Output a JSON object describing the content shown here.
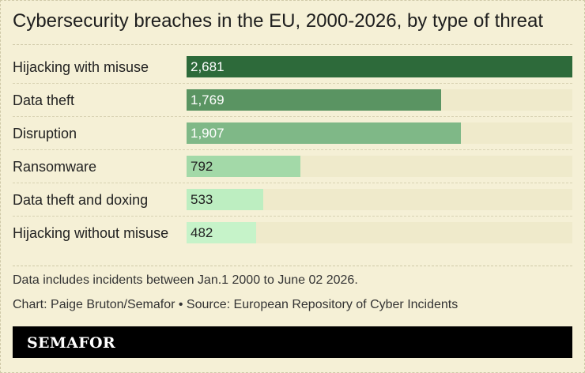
{
  "chart_data": {
    "type": "bar",
    "orientation": "horizontal",
    "title": "Cybersecurity breaches in the EU, 2000-2026, by type of threat",
    "categories": [
      "Hijacking with misuse",
      "Data theft",
      "Disruption",
      "Ransomware",
      "Data theft and doxing",
      "Hijacking without misuse"
    ],
    "values": [
      2681,
      1769,
      1907,
      792,
      533,
      482
    ],
    "value_labels": [
      "2,681",
      "1,769",
      "1,907",
      "792",
      "533",
      "482"
    ],
    "xlim": [
      0,
      2681
    ],
    "bar_colors": [
      "#2d6a3a",
      "#5a9462",
      "#7fb887",
      "#a3d9a8",
      "#bdeec1",
      "#c6f3c9"
    ],
    "value_text_colors": [
      "#ffffff",
      "#ffffff",
      "#ffffff",
      "#222222",
      "#222222",
      "#222222"
    ],
    "track_color": "#efeacb",
    "grid": false,
    "legend": "none"
  },
  "notes": {
    "line1": "Data includes incidents between Jan.1 2000 to June 02 2026.",
    "line2": "Chart: Paige Bruton/Semafor • Source: European Repository of Cyber Incidents"
  },
  "footer": {
    "logo_text": "SEMAFOR",
    "background": "#000000"
  }
}
